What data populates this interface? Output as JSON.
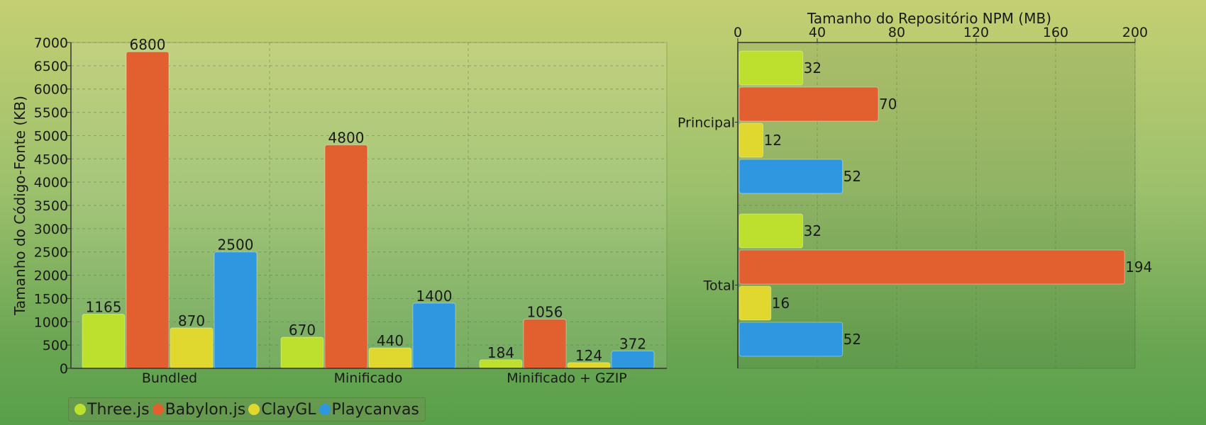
{
  "colors": {
    "three": "#bde02e",
    "babylon": "#e26030",
    "claygl": "#e0d82e",
    "playcanvas": "#2f96e0"
  },
  "chart_data": [
    {
      "type": "bar",
      "orientation": "vertical",
      "title": "",
      "xlabel": "",
      "ylabel": "Tamanho do Código-Fonte (KB)",
      "ylim": [
        0,
        7000
      ],
      "yticks": [
        "0",
        "500",
        "1000",
        "1500",
        "2000",
        "2500",
        "3000",
        "3500",
        "4000",
        "4500",
        "5000",
        "5500",
        "6000",
        "6500",
        "7000"
      ],
      "categories": [
        "Bundled",
        "Minificado",
        "Minificado + GZIP"
      ],
      "series": [
        {
          "name": "Three.js",
          "color_key": "three",
          "values": [
            1165,
            670,
            184
          ]
        },
        {
          "name": "Babylon.js",
          "color_key": "babylon",
          "values": [
            6800,
            4800,
            1056
          ]
        },
        {
          "name": "ClayGL",
          "color_key": "claygl",
          "values": [
            870,
            440,
            124
          ]
        },
        {
          "name": "Playcanvas",
          "color_key": "playcanvas",
          "values": [
            2500,
            1400,
            372
          ]
        }
      ],
      "grid": true,
      "legend_position": "bottom-left"
    },
    {
      "type": "bar",
      "orientation": "horizontal",
      "title": "",
      "xlabel": "Tamanho do Repositório NPM (MB)",
      "ylabel": "",
      "xlim": [
        0,
        200
      ],
      "xticks": [
        "0",
        "40",
        "80",
        "120",
        "160",
        "200"
      ],
      "xaxis_position": "top",
      "categories": [
        "Principal",
        "Total"
      ],
      "series": [
        {
          "name": "Three.js",
          "color_key": "three",
          "values": [
            32,
            32
          ]
        },
        {
          "name": "Babylon.js",
          "color_key": "babylon",
          "values": [
            70,
            194
          ]
        },
        {
          "name": "ClayGL",
          "color_key": "claygl",
          "values": [
            12,
            16
          ]
        },
        {
          "name": "Playcanvas",
          "color_key": "playcanvas",
          "values": [
            52,
            52
          ]
        }
      ],
      "grid": true
    }
  ],
  "legend": [
    {
      "label": "Three.js",
      "color_key": "three"
    },
    {
      "label": "Babylon.js",
      "color_key": "babylon"
    },
    {
      "label": "ClayGL",
      "color_key": "claygl"
    },
    {
      "label": "Playcanvas",
      "color_key": "playcanvas"
    }
  ]
}
